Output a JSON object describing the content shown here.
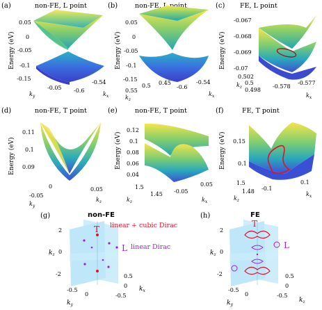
{
  "figure": {
    "panels": [
      {
        "id": "a",
        "letter": "(a)",
        "title": "non-FE, L point",
        "ylabel": "Energy (eV)",
        "zticks": [
          "0.05",
          "0",
          "-0.05",
          "-0.1",
          "-0.15"
        ],
        "xtick_vals": [
          "-0.05",
          "-0.6",
          "-0.54"
        ],
        "xaxis": [
          "k",
          "y",
          "k",
          "x"
        ]
      },
      {
        "id": "b",
        "letter": "(b)",
        "title": "non-FE, L point",
        "ylabel": "Energy (eV)",
        "zticks": [
          "0.05",
          "0",
          "-0.05",
          "-0.1",
          "-0.15"
        ],
        "xtick_vals": [
          "0.55",
          "0.5",
          "0.45",
          "-0.6",
          "-0.54"
        ],
        "xaxis": [
          "k",
          "z",
          "k",
          "x"
        ]
      },
      {
        "id": "c",
        "letter": "(c)",
        "title": "FE, L point",
        "ylabel": "Energy (eV)",
        "zticks": [
          "-0.067",
          "-0.068",
          "-0.069",
          "-0.07"
        ],
        "xtick_vals": [
          "0.502",
          "0.5",
          "0.498",
          "-0.578",
          "-0.577"
        ],
        "xaxis": [
          "k",
          "z",
          "k",
          "x"
        ]
      },
      {
        "id": "d",
        "letter": "(d)",
        "title": "non-FE, T point",
        "ylabel": "Energy (eV)",
        "zticks": [
          "0.11",
          "0.1",
          "0.09"
        ],
        "xtick_vals": [
          "0",
          "-0.05",
          "0.05"
        ],
        "xaxis": [
          "k",
          "y",
          "k",
          "z"
        ]
      },
      {
        "id": "e",
        "letter": "(e)",
        "title": "non-FE, T point",
        "ylabel": "Energy (eV)",
        "zticks": [
          "0.12",
          "0.1",
          "0.08",
          "0.06",
          "0.04"
        ],
        "xtick_vals": [
          "1.5",
          "1.45",
          "-0.05",
          "0.05"
        ],
        "xaxis": [
          "k",
          "z",
          "k",
          "x"
        ]
      },
      {
        "id": "f",
        "letter": "(f)",
        "title": "FE, T point",
        "ylabel": "Energy (eV)",
        "zticks": [
          "0.15",
          "0.1"
        ],
        "xtick_vals": [
          "1.5",
          "1.48",
          "-0.1",
          "0.1"
        ],
        "xaxis": [
          "k",
          "z",
          "k",
          "x"
        ]
      }
    ],
    "bottom": [
      {
        "id": "g",
        "letter": "(g)",
        "title": "non-FE",
        "zticks": [
          "2",
          "0",
          "-2"
        ],
        "ytick_vals": [
          "0",
          "-0.5"
        ],
        "xtick_vals": [
          "0.5",
          "0",
          "-0.5"
        ],
        "zaxis": [
          "k",
          "z"
        ],
        "yaxis": [
          "k",
          "y"
        ],
        "xaxis": [
          "k",
          "x"
        ],
        "T": "T",
        "L": "L",
        "legend_red": "linear + cubic Dirac",
        "legend_purple": "linear Dirac"
      },
      {
        "id": "h",
        "letter": "(h)",
        "title": "FE",
        "zticks": [
          "2",
          "0",
          "-2"
        ],
        "ytick_vals": [
          "0",
          "-0.5"
        ],
        "xtick_vals": [
          "0.5",
          "0",
          "-0.5"
        ],
        "zaxis": [
          "k",
          "z"
        ],
        "yaxis": [
          "k",
          "y"
        ],
        "xaxis": [
          "k",
          "z"
        ],
        "T": "T",
        "L": "L"
      }
    ],
    "colors": {
      "red": "#e0122a",
      "purple": "#9b1fd9",
      "plane": "#a9def7",
      "surface_top": "#f2e04a",
      "surface_mid": "#2fb7a6",
      "surface_low": "#3a5fe0"
    }
  }
}
